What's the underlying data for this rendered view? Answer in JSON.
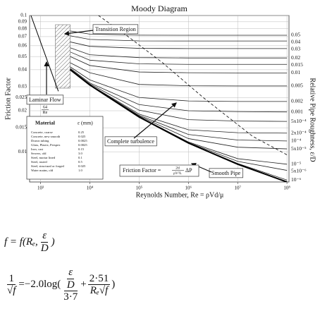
{
  "chart_data": {
    "type": "line",
    "title": "Moody Diagram",
    "x_label": "Reynolds Number, Re = ρVd/μ",
    "y_label": "Friction Factor",
    "y2_label": "Relative Pipe Roughness, ε/D",
    "log_x": true,
    "log_y": true,
    "grid": true,
    "line_color": "#222",
    "xlim": [
      600,
      110000000
    ],
    "ylim": [
      0.006,
      0.1
    ],
    "xticks": [
      {
        "value": 1000,
        "label": "10³"
      },
      {
        "value": 10000,
        "label": "10⁴"
      },
      {
        "value": 100000,
        "label": "10⁵"
      },
      {
        "value": 1000000,
        "label": "10⁶"
      },
      {
        "value": 10000000,
        "label": "10⁷"
      },
      {
        "value": 100000000,
        "label": "10⁸"
      }
    ],
    "yticks": [
      0.1,
      0.09,
      0.08,
      0.07,
      0.06,
      0.05,
      0.04,
      0.03,
      0.025,
      0.02,
      0.015,
      0.01
    ],
    "x": [
      4000,
      10000,
      100000,
      1000000,
      10000000,
      100000000
    ],
    "series": [
      {
        "name": "0.05",
        "values": [
          0.077,
          0.073,
          0.0717,
          0.0716,
          0.0716,
          0.0716
        ]
      },
      {
        "name": "0.04",
        "values": [
          0.071,
          0.0668,
          0.0651,
          0.065,
          0.065,
          0.065
        ]
      },
      {
        "name": "0.03",
        "values": [
          0.064,
          0.0594,
          0.0574,
          0.0572,
          0.0572,
          0.0572
        ]
      },
      {
        "name": "0.02",
        "values": [
          0.058,
          0.0515,
          0.0491,
          0.0488,
          0.0488,
          0.0488
        ]
      },
      {
        "name": "0.015",
        "values": [
          0.054,
          0.047,
          0.0442,
          0.0438,
          0.0438,
          0.0438
        ]
      },
      {
        "name": "0.01",
        "values": [
          0.05,
          0.043,
          0.0385,
          0.038,
          0.0379,
          0.0379
        ]
      },
      {
        "name": "0.005",
        "values": [
          0.045,
          0.038,
          0.0312,
          0.0305,
          0.0304,
          0.0304
        ]
      },
      {
        "name": "0.002",
        "values": [
          0.042,
          0.0337,
          0.025,
          0.0236,
          0.0234,
          0.0234
        ]
      },
      {
        "name": "0.001",
        "values": [
          0.041,
          0.032,
          0.0222,
          0.02,
          0.0197,
          0.0196
        ]
      },
      {
        "name": "5x10⁻⁴",
        "values": [
          0.0405,
          0.0315,
          0.0202,
          0.0172,
          0.0168,
          0.0167
        ]
      },
      {
        "name": "2x10⁻⁴",
        "values": [
          0.0402,
          0.0311,
          0.0189,
          0.0145,
          0.0138,
          0.0137
        ]
      },
      {
        "name": "10⁻⁴",
        "values": [
          0.0401,
          0.031,
          0.0185,
          0.0134,
          0.0122,
          0.012
        ]
      },
      {
        "name": "5x10⁻⁵",
        "values": [
          0.04,
          0.031,
          0.0183,
          0.0125,
          0.0108,
          0.0105
        ]
      },
      {
        "name": "10⁻⁵",
        "values": [
          0.04,
          0.0309,
          0.0181,
          0.0118,
          0.0089,
          0.0081
        ]
      },
      {
        "name": "5x10⁻⁶",
        "values": [
          0.04,
          0.0309,
          0.018,
          0.0117,
          0.0085,
          0.0073
        ]
      },
      {
        "name": "10⁻⁶",
        "values": [
          0.04,
          0.0309,
          0.018,
          0.0116,
          0.0082,
          0.0062
        ]
      }
    ],
    "smooth_pipe": {
      "name": "Smooth Pipe",
      "values": [
        0.04,
        0.0309,
        0.018,
        0.0116,
        0.0081,
        0.006
      ]
    },
    "laminar": {
      "name": "Laminar Flow",
      "formula_num": "64",
      "formula_den": "Re",
      "x": [
        640,
        2300
      ],
      "values": [
        0.1,
        0.0278
      ]
    },
    "complete_turbulence": {
      "name": "Complete turbulence",
      "x": [
        15000,
        60000,
        300000,
        2000000,
        20000000,
        100000000
      ],
      "values": [
        0.1,
        0.07,
        0.045,
        0.025,
        0.013,
        0.0095
      ]
    },
    "transition": {
      "label": "Transition Region",
      "x": [
        2000,
        4000
      ]
    },
    "friction_factor_label": {
      "text": "Friction Factor =",
      "num": "2d",
      "den": "ρV²L",
      "tail": "ΔP"
    },
    "materials": {
      "header": [
        "Material",
        "ε (mm)"
      ],
      "rows": [
        [
          "Concrete, coarse",
          "0.25"
        ],
        [
          "Concrete, new smooth",
          "0.025"
        ],
        [
          "Drawn tubing",
          "0.0025"
        ],
        [
          "Glass, Plastic, Perspex",
          "0.0025"
        ],
        [
          "Iron, cast",
          "0.15"
        ],
        [
          "Sewers, old",
          "3.0"
        ],
        [
          "Steel, mortar lined",
          "0.1"
        ],
        [
          "Steel, rusted",
          "0.5"
        ],
        [
          "Steel, structural or forged",
          "0.025"
        ],
        [
          "Water mains, old",
          "1.0"
        ]
      ]
    }
  },
  "equations": {
    "equation_1": {
      "text": "f = f(Rₑ,",
      "num": "ε",
      "den": "D",
      "close": ")"
    },
    "equation_2": {
      "lhs_num": "1",
      "lhs_den": "√f",
      "eq": "=−2.0log(",
      "a_num": "ε",
      "a_den": "D",
      "a_div": "3·7",
      "plus": "+",
      "b_num": "2·51",
      "b_den": "Rₑ√f",
      "close": ")"
    }
  }
}
